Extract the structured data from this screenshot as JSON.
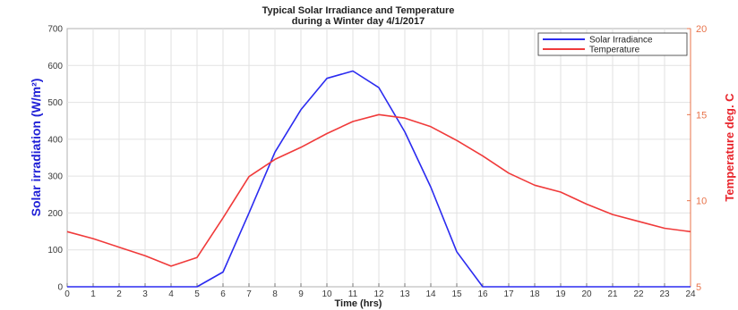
{
  "chart_data": {
    "type": "line",
    "title_line1": "Typical Solar Irradiance and Temperature",
    "title_line2": "during a Winter day 4/1/2017",
    "xlabel": "Time (hrs)",
    "ylabel": "Solar irradiation (W/m²)",
    "y2label": "Temperature deg. C",
    "x": [
      0,
      1,
      2,
      3,
      4,
      5,
      6,
      7,
      8,
      9,
      10,
      11,
      12,
      13,
      14,
      15,
      16,
      17,
      18,
      19,
      20,
      21,
      22,
      23,
      24
    ],
    "xlim": [
      0,
      24
    ],
    "ylim": [
      0,
      700
    ],
    "y2lim": [
      5,
      20
    ],
    "yticks": [
      "0",
      "100",
      "200",
      "300",
      "400",
      "500",
      "600",
      "700"
    ],
    "y2ticks": [
      "5",
      "10",
      "15",
      "20"
    ],
    "grid": true,
    "legend_position": "top-right",
    "series": [
      {
        "name": "Solar Irradiance",
        "axis": "left",
        "color": "#2b2bf0",
        "values": [
          0,
          0,
          0,
          0,
          0,
          0,
          40,
          200,
          365,
          480,
          565,
          585,
          540,
          420,
          270,
          95,
          0,
          0,
          0,
          0,
          0,
          0,
          0,
          0,
          0
        ]
      },
      {
        "name": "Temperature",
        "axis": "right",
        "color": "#f03a3a",
        "values": [
          8.2,
          7.8,
          7.3,
          6.8,
          6.2,
          6.7,
          9.0,
          11.4,
          12.4,
          13.1,
          13.9,
          14.6,
          15.0,
          14.8,
          14.3,
          13.5,
          12.6,
          11.6,
          10.9,
          10.5,
          9.8,
          9.2,
          8.8,
          8.4,
          8.2
        ]
      }
    ]
  }
}
